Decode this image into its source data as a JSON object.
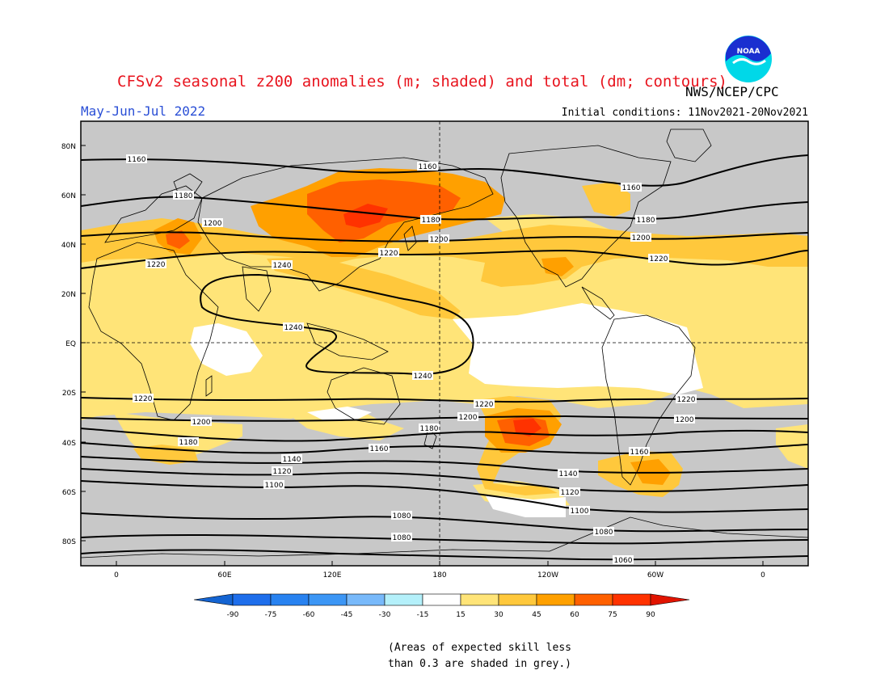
{
  "title": "CFSv2 seasonal z200 anomalies (m; shaded) and total (dm; contours)",
  "period": "May-Jun-Jul 2022",
  "agency": "NWS/NCEP/CPC",
  "initial_conditions": "Initial conditions: 11Nov2021-20Nov2021",
  "logo_text": "NOAA",
  "note_line1": "(Areas of expected skill less",
  "note_line2": "than 0.3 are shaded in grey.)",
  "lat_labels": [
    "80N",
    "60N",
    "40N",
    "20N",
    "EQ",
    "20S",
    "40S",
    "60S",
    "80S"
  ],
  "lon_labels": [
    "0",
    "60E",
    "120E",
    "180",
    "120W",
    "60W",
    "0"
  ],
  "colorbar": {
    "ticks": [
      "-90",
      "-75",
      "-60",
      "-45",
      "-30",
      "-15",
      "15",
      "30",
      "45",
      "60",
      "75",
      "90"
    ],
    "colors": [
      "#1464d2",
      "#1e6eeb",
      "#2882f0",
      "#3c96f5",
      "#78b9fa",
      "#b4f0fa",
      "#ffffff",
      "#ffe478",
      "#ffc83c",
      "#ffa000",
      "#ff6000",
      "#ff3200",
      "#e11400"
    ]
  },
  "grey_color": "#c8c8c8",
  "contour_labels": [
    "1160",
    "1160",
    "1160",
    "1180",
    "1180",
    "1180",
    "1200",
    "1200",
    "1200",
    "1220",
    "1220",
    "1220",
    "1240",
    "1240",
    "1240",
    "1220",
    "1220",
    "1220",
    "1200",
    "1200",
    "1200",
    "1180",
    "1180",
    "1160",
    "1160",
    "1140",
    "1140",
    "1120",
    "1120",
    "1100",
    "1100",
    "1080",
    "1080",
    "1080",
    "1060"
  ]
}
